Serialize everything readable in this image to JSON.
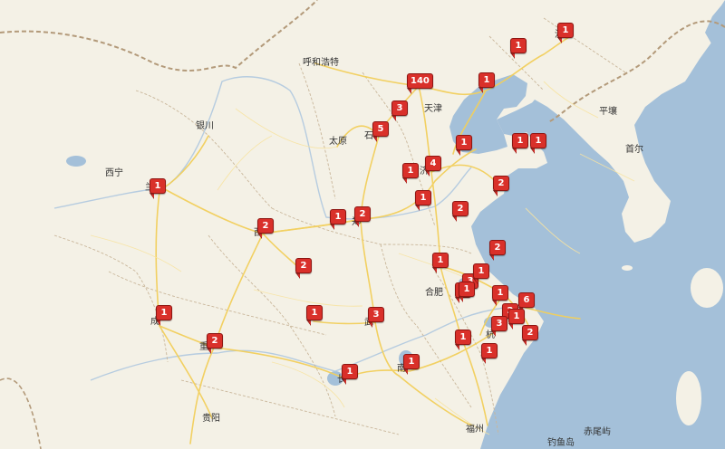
{
  "colors": {
    "water": "#a4c0d9",
    "land": "#f4f1e6",
    "road": "#f6d56c",
    "border": "#b7a98f",
    "marker": "#d9302a"
  },
  "city_labels": [
    {
      "id": "huhehaote",
      "name": "呼和浩特"
    },
    {
      "id": "yinchuan",
      "name": "银川"
    },
    {
      "id": "xining",
      "name": "西宁"
    },
    {
      "id": "taiyuan",
      "name": "太原"
    },
    {
      "id": "tianjin",
      "name": "天津"
    },
    {
      "id": "shi",
      "name": "石"
    },
    {
      "id": "ji",
      "name": "济"
    },
    {
      "id": "xi",
      "name": "西"
    },
    {
      "id": "zheng",
      "name": "郑"
    },
    {
      "id": "hefei",
      "name": "合肥"
    },
    {
      "id": "wu",
      "name": "武"
    },
    {
      "id": "nan",
      "name": "南"
    },
    {
      "id": "hang",
      "name": "杭"
    },
    {
      "id": "chang",
      "name": "长"
    },
    {
      "id": "cheng",
      "name": "成"
    },
    {
      "id": "chong",
      "name": "重"
    },
    {
      "id": "guiyang",
      "name": "贵阳"
    },
    {
      "id": "fuzhou",
      "name": "福州"
    },
    {
      "id": "pingrang",
      "name": "平壤"
    },
    {
      "id": "shouer",
      "name": "首尔"
    },
    {
      "id": "shen",
      "name": "沈"
    },
    {
      "id": "lan",
      "name": "兰"
    },
    {
      "id": "chiwei",
      "name": "赤尾屿"
    },
    {
      "id": "diaoyu",
      "name": "钓鱼岛"
    }
  ],
  "markers": [
    {
      "id": "m01",
      "count": "1"
    },
    {
      "id": "m02",
      "count": "1"
    },
    {
      "id": "m03",
      "count": "1"
    },
    {
      "id": "m04",
      "count": "140"
    },
    {
      "id": "m05",
      "count": "3"
    },
    {
      "id": "m06",
      "count": "5"
    },
    {
      "id": "m07",
      "count": "1"
    },
    {
      "id": "m08",
      "count": "1"
    },
    {
      "id": "m09",
      "count": "1"
    },
    {
      "id": "m10",
      "count": "1"
    },
    {
      "id": "m11",
      "count": "4"
    },
    {
      "id": "m12",
      "count": "2"
    },
    {
      "id": "m13",
      "count": "1"
    },
    {
      "id": "m14",
      "count": "2"
    },
    {
      "id": "m15",
      "count": "1"
    },
    {
      "id": "m16",
      "count": "2"
    },
    {
      "id": "m17",
      "count": "2"
    },
    {
      "id": "m18",
      "count": "2"
    },
    {
      "id": "m19",
      "count": "2"
    },
    {
      "id": "m20",
      "count": "1"
    },
    {
      "id": "m21",
      "count": "1"
    },
    {
      "id": "m22",
      "count": "3"
    },
    {
      "id": "m23",
      "count": "1"
    },
    {
      "id": "m24",
      "count": "1"
    },
    {
      "id": "m25",
      "count": "1"
    },
    {
      "id": "m26",
      "count": "1"
    },
    {
      "id": "m27",
      "count": "6"
    },
    {
      "id": "m28",
      "count": "2"
    },
    {
      "id": "m29",
      "count": "1"
    },
    {
      "id": "m30",
      "count": "3"
    },
    {
      "id": "m31",
      "count": "1"
    },
    {
      "id": "m32",
      "count": "3"
    },
    {
      "id": "m33",
      "count": "1"
    },
    {
      "id": "m34",
      "count": "2"
    },
    {
      "id": "m35",
      "count": "1"
    },
    {
      "id": "m36",
      "count": "1"
    },
    {
      "id": "m37",
      "count": "1"
    },
    {
      "id": "m38",
      "count": "2"
    },
    {
      "id": "m39",
      "count": "1"
    }
  ]
}
